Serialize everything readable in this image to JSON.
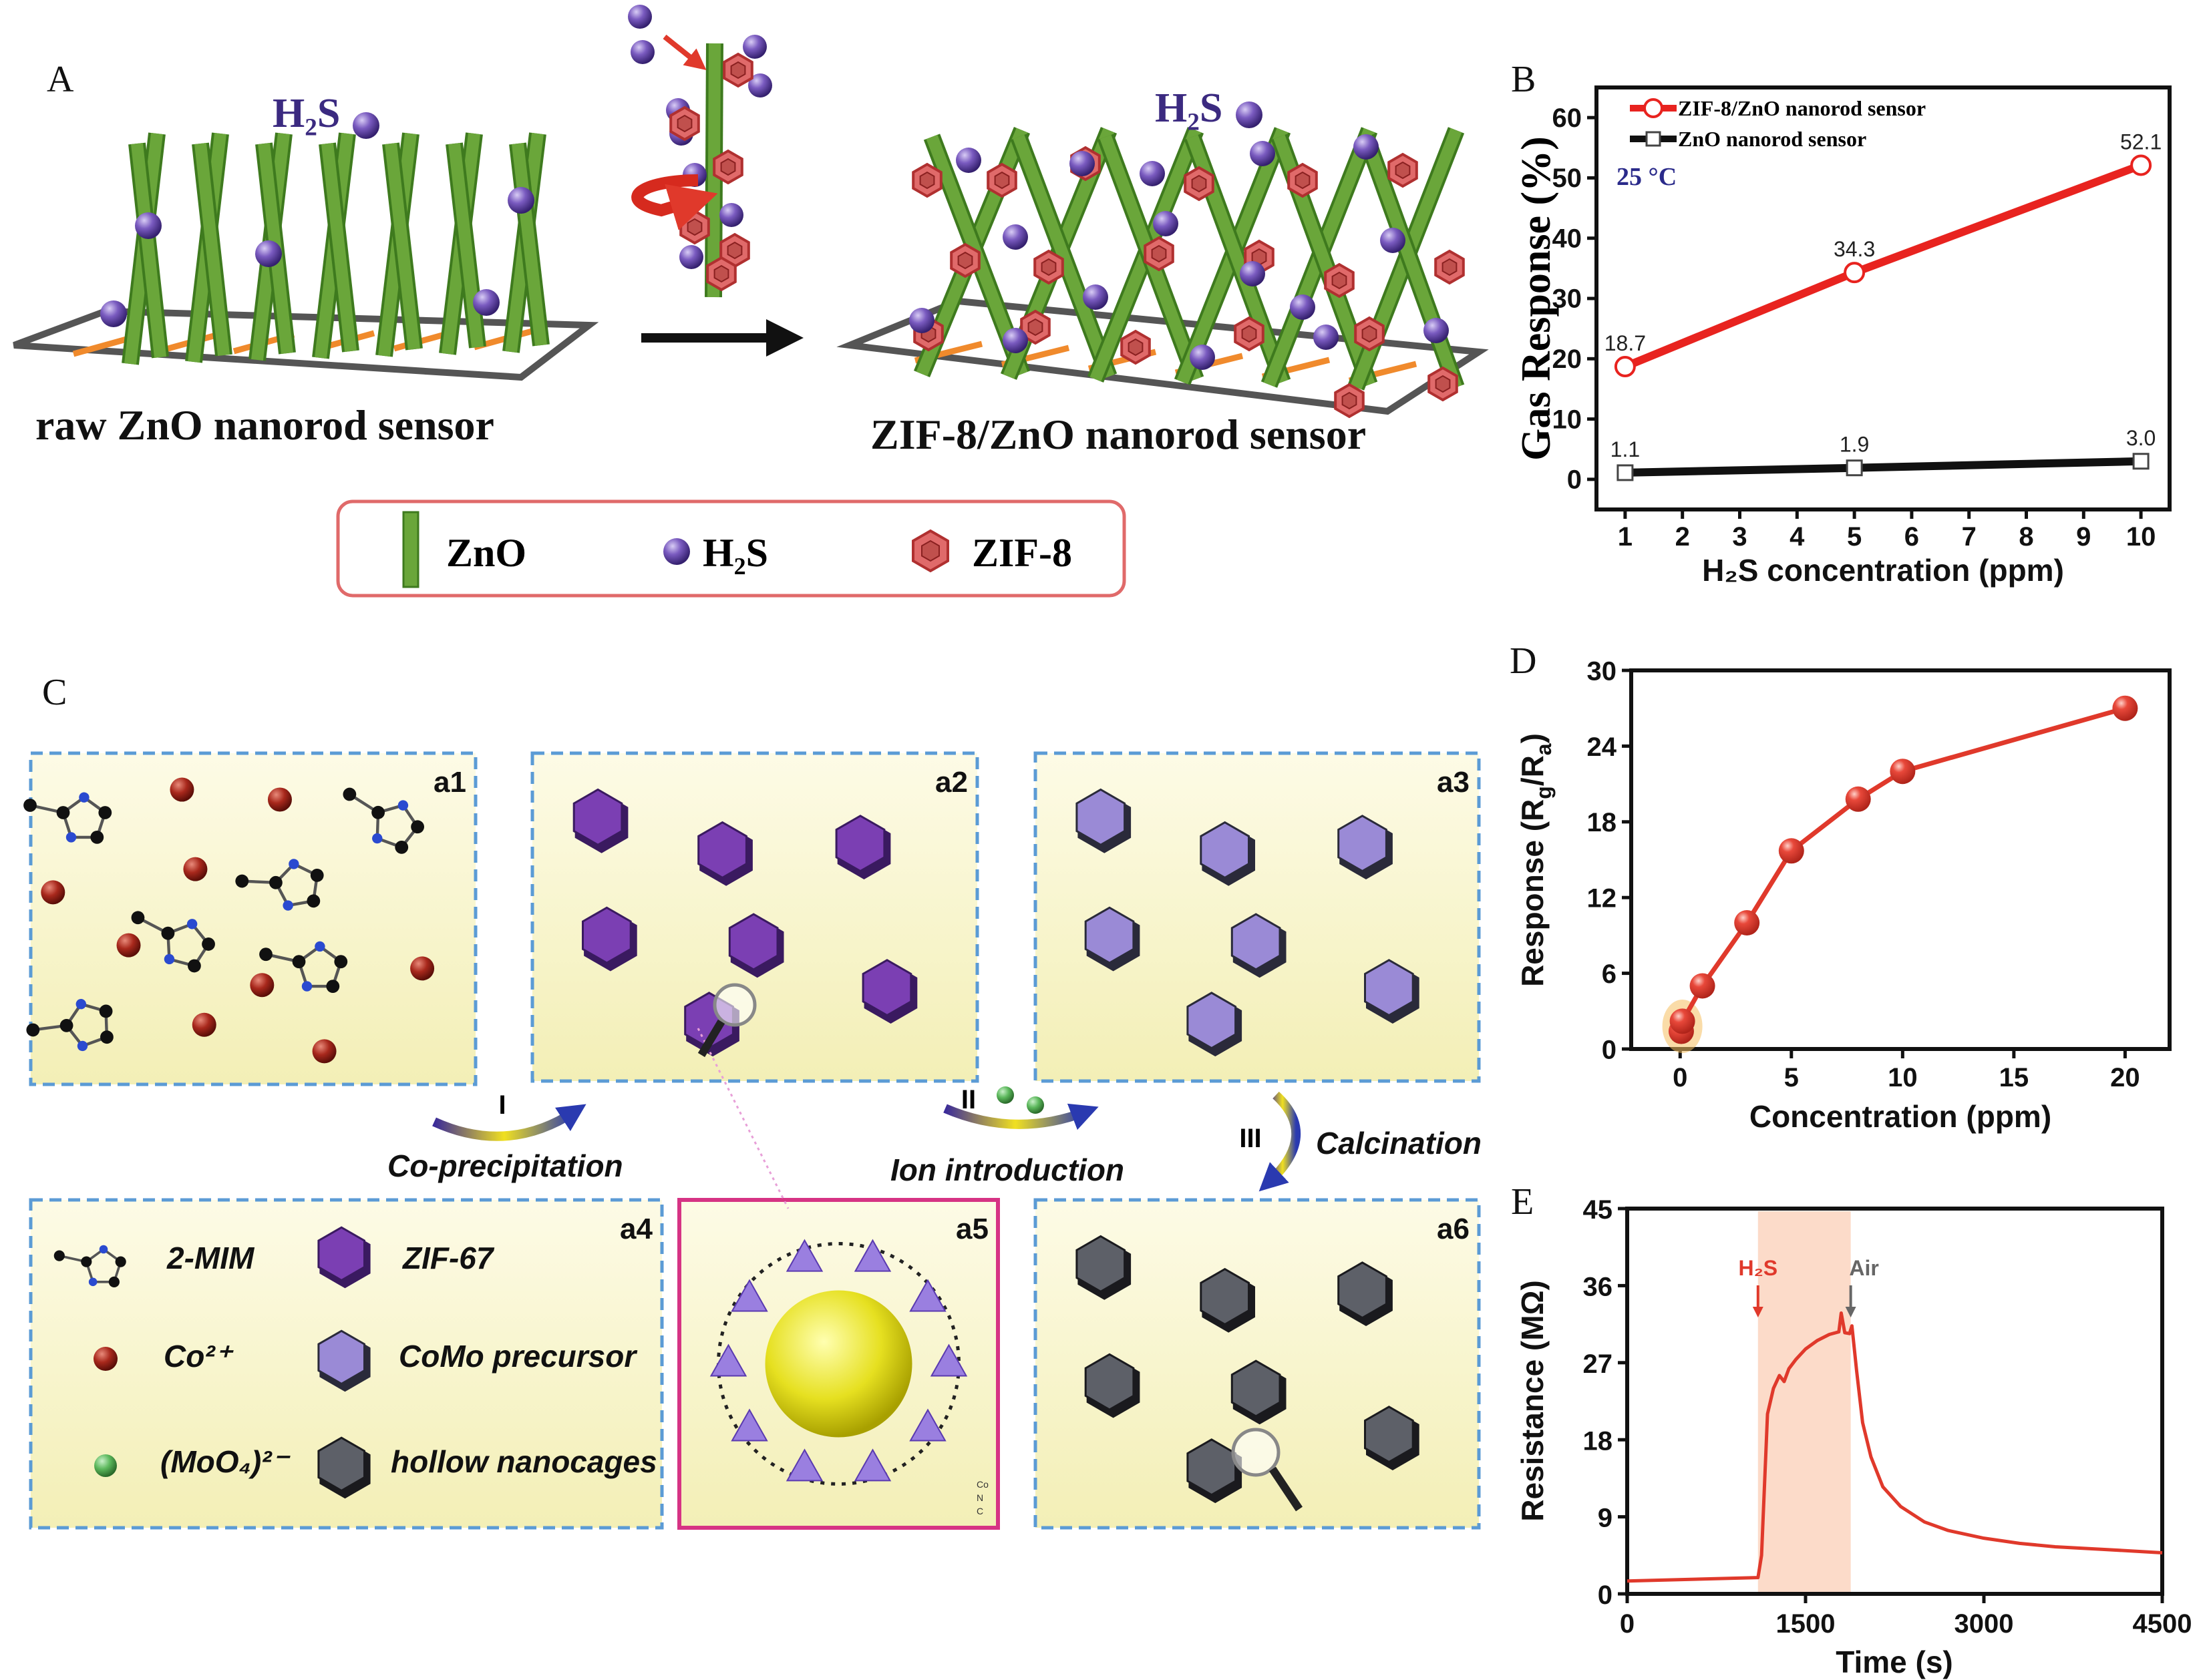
{
  "panel_labels": {
    "a": "A",
    "b": "B",
    "c": "C",
    "d": "D",
    "e": "E"
  },
  "panelA": {
    "h2s_left": "H₂S",
    "h2s_right": "H₂S",
    "left_title": "raw ZnO nanorod sensor",
    "right_title": "ZIF-8/ZnO nanorod sensor",
    "legend": {
      "zno": "ZnO",
      "h2s": "H₂S",
      "zif8": "ZIF-8"
    },
    "colors": {
      "rod": "#6aa63a",
      "h2s": "#5b3d9a",
      "zif8": "#d9534f",
      "electrode": "#f08a2c",
      "legend_border": "#e06a6a"
    }
  },
  "panelC": {
    "box_labels": [
      "a1",
      "a2",
      "a3",
      "a4",
      "a5",
      "a6"
    ],
    "steps": [
      {
        "num": "I",
        "label": "Co-precipitation"
      },
      {
        "num": "II",
        "label": "Ion introduction"
      },
      {
        "num": "III",
        "label": "Calcination"
      }
    ],
    "legend": {
      "mim": "2-MIM",
      "co": "Co²⁺",
      "moo4": "(MoO₄)²⁻",
      "zif67": "ZIF-67",
      "como": "CoMo precursor",
      "hollow": "hollow nanocages"
    },
    "a5_legend": [
      "Co",
      "N",
      "C"
    ],
    "colors": {
      "zif67": "#7b3fb3",
      "como": "#9a8ad6",
      "hollow": "#5d6068",
      "co_ion": "#a3261c",
      "moo4": "#4caf50",
      "border": "#5b9bd5",
      "a5_border": "#d63384"
    }
  },
  "chart_data": [
    {
      "id": "B",
      "type": "line",
      "xlabel": "H₂S concentration (ppm)",
      "ylabel": "Gas Response (%)",
      "xlim": [
        0.5,
        10.5
      ],
      "ylim": [
        -5,
        65
      ],
      "xticks": [
        1,
        2,
        3,
        4,
        5,
        6,
        7,
        8,
        9,
        10
      ],
      "yticks": [
        0,
        10,
        20,
        30,
        40,
        50,
        60
      ],
      "annotation": "25 °C",
      "legend_position": "top-left",
      "series": [
        {
          "name": "ZIF-8/ZnO nanorod sensor",
          "color": "#e8231f",
          "marker": "circle",
          "x": [
            1,
            5,
            10
          ],
          "y": [
            18.7,
            34.3,
            52.1
          ],
          "labels": [
            "18.7",
            "34.3",
            "52.1"
          ]
        },
        {
          "name": "ZnO nanorod sensor",
          "color": "#111111",
          "marker": "square",
          "x": [
            1,
            5,
            10
          ],
          "y": [
            1.1,
            1.9,
            3.0
          ],
          "labels": [
            "1.1",
            "1.9",
            "3.0"
          ]
        }
      ]
    },
    {
      "id": "D",
      "type": "line",
      "xlabel": "Concentration (ppm)",
      "ylabel_parts": [
        "Response (R",
        "g",
        "/R",
        "a",
        ")"
      ],
      "xlim": [
        -2.2,
        22
      ],
      "ylim": [
        0,
        30
      ],
      "xticks": [
        0,
        5,
        10,
        15,
        20
      ],
      "yticks": [
        0,
        6,
        12,
        18,
        24,
        30
      ],
      "series": [
        {
          "name": "response",
          "color": "#e0392b",
          "x": [
            0.05,
            0.1,
            1,
            3,
            5,
            8,
            10,
            20
          ],
          "y": [
            1.4,
            2.2,
            5.0,
            10.0,
            15.7,
            19.8,
            22.0,
            27.0
          ]
        }
      ],
      "highlight_x": 0.1
    },
    {
      "id": "E",
      "type": "line",
      "xlabel": "Time (s)",
      "ylabel": "Resistance (MΩ)",
      "xlim": [
        0,
        4500
      ],
      "ylim": [
        0,
        45
      ],
      "xticks": [
        0,
        1500,
        3000,
        4500
      ],
      "yticks": [
        0,
        9,
        18,
        27,
        36,
        45
      ],
      "shaded_region": [
        1100,
        1880
      ],
      "annotations": [
        {
          "text": "H₂S",
          "x": 1100,
          "color": "#e0392b"
        },
        {
          "text": "Air",
          "x": 1880,
          "color": "#666666"
        }
      ],
      "series": [
        {
          "name": "resistance",
          "color": "#e0392b",
          "x": [
            0,
            1100,
            1130,
            1180,
            1230,
            1280,
            1320,
            1360,
            1420,
            1500,
            1600,
            1700,
            1780,
            1800,
            1830,
            1870,
            1890,
            1930,
            1980,
            2050,
            2150,
            2300,
            2500,
            2700,
            3000,
            3300,
            3600,
            4000,
            4500
          ],
          "y": [
            1.5,
            1.9,
            4.5,
            21,
            24,
            25.5,
            24.8,
            26.3,
            27.4,
            28.6,
            29.6,
            30.3,
            30.6,
            32.8,
            30.5,
            30.4,
            31.3,
            26,
            20,
            16,
            12.5,
            10.2,
            8.4,
            7.4,
            6.5,
            5.9,
            5.5,
            5.2,
            4.8
          ]
        }
      ]
    }
  ]
}
